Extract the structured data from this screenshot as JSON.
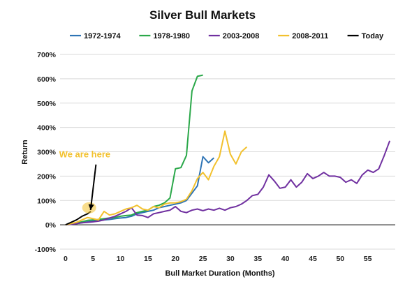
{
  "chart_data": {
    "type": "line",
    "title": "Silver Bull Markets",
    "xlabel": "Bull Market Duration (Months)",
    "ylabel": "Return",
    "xlim": [
      -1,
      60
    ],
    "ylim": [
      -100,
      700
    ],
    "x_ticks": [
      0,
      5,
      10,
      15,
      20,
      25,
      30,
      35,
      40,
      45,
      50,
      55
    ],
    "y_ticks": [
      -100,
      0,
      100,
      200,
      300,
      400,
      500,
      600,
      700
    ],
    "y_tick_labels": [
      "-100%",
      "0%",
      "100%",
      "200%",
      "300%",
      "400%",
      "500%",
      "600%",
      "700%"
    ],
    "grid": "horizontal",
    "legend_position": "top",
    "series": [
      {
        "name": "1972-1974",
        "color": "#2e74b5",
        "points": [
          [
            0,
            0
          ],
          [
            1,
            2
          ],
          [
            2,
            5
          ],
          [
            3,
            8
          ],
          [
            4,
            12
          ],
          [
            5,
            15
          ],
          [
            6,
            18
          ],
          [
            7,
            20
          ],
          [
            8,
            22
          ],
          [
            9,
            25
          ],
          [
            10,
            28
          ],
          [
            11,
            30
          ],
          [
            12,
            35
          ],
          [
            13,
            45
          ],
          [
            14,
            50
          ],
          [
            15,
            55
          ],
          [
            16,
            60
          ],
          [
            17,
            70
          ],
          [
            18,
            75
          ],
          [
            19,
            80
          ],
          [
            20,
            85
          ],
          [
            21,
            90
          ],
          [
            22,
            100
          ],
          [
            23,
            130
          ],
          [
            24,
            160
          ],
          [
            25,
            280
          ],
          [
            26,
            255
          ],
          [
            27,
            275
          ]
        ]
      },
      {
        "name": "1978-1980",
        "color": "#2ba84a",
        "points": [
          [
            0,
            0
          ],
          [
            1,
            3
          ],
          [
            2,
            8
          ],
          [
            3,
            12
          ],
          [
            4,
            18
          ],
          [
            5,
            20
          ],
          [
            6,
            22
          ],
          [
            7,
            25
          ],
          [
            8,
            28
          ],
          [
            9,
            30
          ],
          [
            10,
            35
          ],
          [
            11,
            38
          ],
          [
            12,
            40
          ],
          [
            13,
            50
          ],
          [
            14,
            55
          ],
          [
            15,
            60
          ],
          [
            16,
            75
          ],
          [
            17,
            80
          ],
          [
            18,
            90
          ],
          [
            19,
            110
          ],
          [
            20,
            230
          ],
          [
            21,
            235
          ],
          [
            22,
            285
          ],
          [
            23,
            550
          ],
          [
            24,
            610
          ],
          [
            25,
            615
          ]
        ]
      },
      {
        "name": "2003-2008",
        "color": "#7030a0",
        "points": [
          [
            0,
            0
          ],
          [
            1,
            2
          ],
          [
            2,
            5
          ],
          [
            3,
            8
          ],
          [
            4,
            10
          ],
          [
            5,
            12
          ],
          [
            6,
            15
          ],
          [
            7,
            20
          ],
          [
            8,
            28
          ],
          [
            9,
            35
          ],
          [
            10,
            45
          ],
          [
            11,
            55
          ],
          [
            12,
            70
          ],
          [
            13,
            40
          ],
          [
            14,
            38
          ],
          [
            15,
            30
          ],
          [
            16,
            45
          ],
          [
            17,
            50
          ],
          [
            18,
            55
          ],
          [
            19,
            60
          ],
          [
            20,
            75
          ],
          [
            21,
            55
          ],
          [
            22,
            50
          ],
          [
            23,
            60
          ],
          [
            24,
            65
          ],
          [
            25,
            58
          ],
          [
            26,
            65
          ],
          [
            27,
            60
          ],
          [
            28,
            68
          ],
          [
            29,
            60
          ],
          [
            30,
            70
          ],
          [
            31,
            75
          ],
          [
            32,
            85
          ],
          [
            33,
            100
          ],
          [
            34,
            120
          ],
          [
            35,
            125
          ],
          [
            36,
            155
          ],
          [
            37,
            205
          ],
          [
            38,
            180
          ],
          [
            39,
            150
          ],
          [
            40,
            155
          ],
          [
            41,
            185
          ],
          [
            42,
            155
          ],
          [
            43,
            175
          ],
          [
            44,
            210
          ],
          [
            45,
            190
          ],
          [
            46,
            200
          ],
          [
            47,
            215
          ],
          [
            48,
            200
          ],
          [
            49,
            200
          ],
          [
            50,
            195
          ],
          [
            51,
            175
          ],
          [
            52,
            185
          ],
          [
            53,
            170
          ],
          [
            54,
            205
          ],
          [
            55,
            225
          ],
          [
            56,
            215
          ],
          [
            57,
            230
          ],
          [
            58,
            285
          ],
          [
            59,
            345
          ]
        ]
      },
      {
        "name": "2008-2011",
        "color": "#f2c12e",
        "points": [
          [
            0,
            0
          ],
          [
            1,
            5
          ],
          [
            2,
            10
          ],
          [
            3,
            20
          ],
          [
            4,
            30
          ],
          [
            5,
            25
          ],
          [
            6,
            20
          ],
          [
            7,
            55
          ],
          [
            8,
            40
          ],
          [
            9,
            45
          ],
          [
            10,
            55
          ],
          [
            11,
            65
          ],
          [
            12,
            70
          ],
          [
            13,
            80
          ],
          [
            14,
            65
          ],
          [
            15,
            60
          ],
          [
            16,
            75
          ],
          [
            17,
            70
          ],
          [
            18,
            85
          ],
          [
            19,
            90
          ],
          [
            20,
            90
          ],
          [
            21,
            95
          ],
          [
            22,
            105
          ],
          [
            23,
            140
          ],
          [
            24,
            190
          ],
          [
            25,
            215
          ],
          [
            26,
            185
          ],
          [
            27,
            240
          ],
          [
            28,
            280
          ],
          [
            29,
            385
          ],
          [
            30,
            290
          ],
          [
            31,
            250
          ],
          [
            32,
            300
          ],
          [
            33,
            320
          ]
        ]
      },
      {
        "name": "Today",
        "color": "#000000",
        "points": [
          [
            0,
            0
          ],
          [
            1,
            10
          ],
          [
            2,
            20
          ],
          [
            3,
            35
          ],
          [
            4,
            45
          ],
          [
            4.6,
            55
          ]
        ]
      }
    ],
    "annotations": [
      {
        "text": "We are here",
        "x": 3.5,
        "y": 265,
        "arrow_to": [
          4.3,
          55
        ],
        "highlight": [
          4.3,
          70
        ]
      }
    ]
  }
}
